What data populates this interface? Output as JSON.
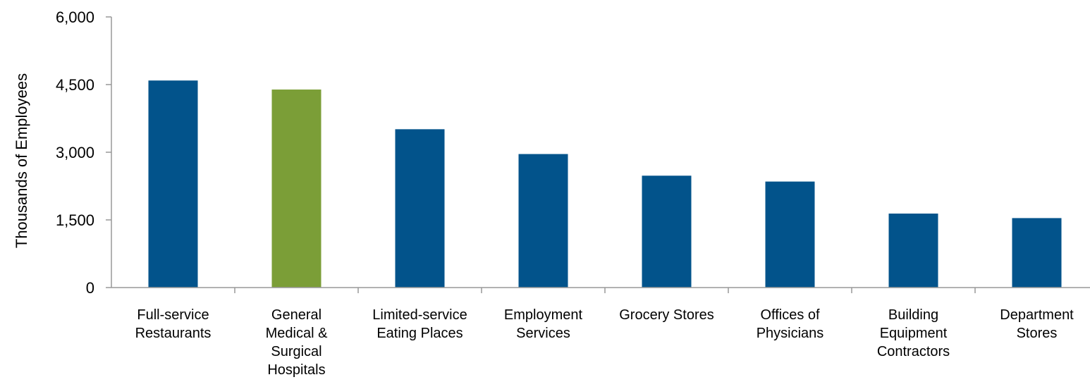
{
  "chart_data": {
    "type": "bar",
    "title": "",
    "xlabel": "",
    "ylabel": "Thousands of Employees",
    "ylim": [
      0,
      6000
    ],
    "yticks": [
      0,
      1500,
      3000,
      4500,
      6000
    ],
    "ytick_labels": [
      "0",
      "1,500",
      "3,000",
      "4,500",
      "6,000"
    ],
    "grid": false,
    "legend": "none",
    "categories": [
      "Full-service Restaurants",
      "General Medical & Surgical Hospitals",
      "Limited-service Eating Places",
      "Employment Services",
      "Grocery Stores",
      "Offices of Physicians",
      "Building Equipment Contractors",
      "Department Stores"
    ],
    "category_label_lines": [
      [
        "Full-service",
        "Restaurants"
      ],
      [
        "General",
        "Medical &",
        "Surgical",
        "Hospitals"
      ],
      [
        "Limited-service",
        "Eating Places"
      ],
      [
        "Employment",
        "Services"
      ],
      [
        "Grocery Stores"
      ],
      [
        "Offices of",
        "Physicians"
      ],
      [
        "Building",
        "Equipment",
        "Contractors"
      ],
      [
        "Department",
        "Stores"
      ]
    ],
    "values": [
      4590,
      4390,
      3510,
      2960,
      2480,
      2350,
      1640,
      1540
    ],
    "colors": {
      "default": "#02538b",
      "highlight": "#7b9e37",
      "axis": "#999999"
    },
    "highlight_index": 1
  }
}
